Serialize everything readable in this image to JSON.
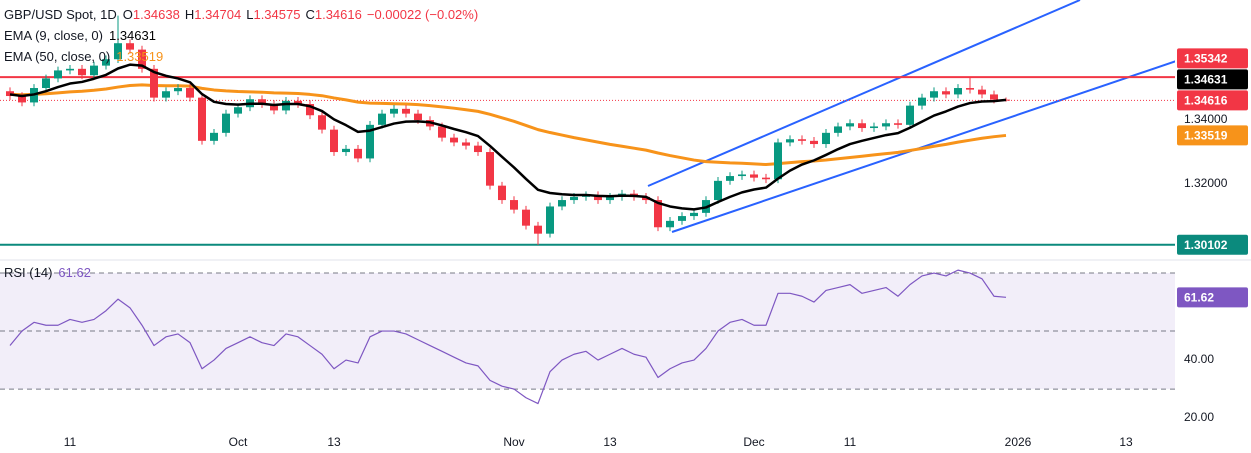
{
  "chart_data": [
    {
      "type": "candlestick",
      "title": "GBP/USD Spot, 1D",
      "ohlc_keys": [
        "O",
        "H",
        "L",
        "C"
      ],
      "change_label": "−0.00022 (−0.02%)",
      "up_color": "#089981",
      "down_color": "#f23645",
      "categories": [
        null,
        null,
        null,
        null,
        null,
        "11",
        null,
        null,
        null,
        null,
        null,
        null,
        null,
        null,
        null,
        null,
        null,
        null,
        null,
        "Oct",
        null,
        null,
        null,
        null,
        null,
        null,
        null,
        "13",
        null,
        null,
        null,
        null,
        null,
        null,
        null,
        null,
        null,
        null,
        null,
        null,
        null,
        null,
        "Nov",
        null,
        null,
        null,
        null,
        null,
        null,
        null,
        "13",
        null,
        null,
        null,
        null,
        null,
        null,
        null,
        null,
        null,
        null,
        null,
        "Dec",
        null,
        null,
        null,
        null,
        null,
        null,
        null,
        "11",
        null,
        null,
        null,
        null,
        null,
        null,
        null,
        null,
        null,
        null,
        null,
        null,
        null,
        "2026",
        null,
        null,
        null,
        null,
        null,
        null,
        null,
        null,
        "13"
      ],
      "open": [
        1.349,
        1.3475,
        1.3455,
        1.35,
        1.353,
        1.3555,
        1.356,
        1.354,
        1.357,
        1.359,
        1.364,
        1.362,
        1.356,
        1.347,
        1.349,
        1.35,
        1.347,
        1.3335,
        1.336,
        1.342,
        1.344,
        1.3465,
        1.345,
        1.343,
        1.346,
        1.345,
        1.3415,
        1.337,
        1.33,
        1.331,
        1.328,
        1.3385,
        1.342,
        1.3435,
        1.342,
        1.34,
        1.338,
        1.3345,
        1.333,
        1.332,
        1.33,
        1.3195,
        1.315,
        1.312,
        1.307,
        1.3045,
        1.313,
        1.315,
        1.316,
        1.3165,
        1.315,
        1.316,
        1.317,
        1.316,
        1.315,
        1.3065,
        1.3085,
        1.31,
        1.311,
        1.315,
        1.321,
        1.3225,
        1.323,
        1.322,
        1.3215,
        1.333,
        1.334,
        1.3335,
        1.3325,
        1.336,
        1.338,
        1.339,
        1.3375,
        1.338,
        1.339,
        1.3385,
        1.3445,
        1.347,
        1.349,
        1.348,
        1.35,
        1.3495,
        1.348,
        1.34638,
        null,
        null,
        null,
        null,
        null,
        null,
        null,
        null,
        null,
        null
      ],
      "high": [
        1.3502,
        1.3487,
        1.3512,
        1.3542,
        1.3567,
        1.3572,
        1.3572,
        1.3582,
        1.3602,
        1.3726,
        1.3652,
        1.3632,
        1.3572,
        1.3502,
        1.3512,
        1.3512,
        1.3482,
        1.3372,
        1.3432,
        1.3452,
        1.3477,
        1.3477,
        1.3462,
        1.3472,
        1.3472,
        1.3462,
        1.3427,
        1.3382,
        1.3322,
        1.3322,
        1.3397,
        1.3432,
        1.3447,
        1.3447,
        1.3432,
        1.3412,
        1.3392,
        1.3357,
        1.3342,
        1.3332,
        1.3312,
        1.3207,
        1.3162,
        1.3132,
        1.3082,
        1.3142,
        1.3162,
        1.3172,
        1.3177,
        1.3177,
        1.3172,
        1.3182,
        1.3182,
        1.3172,
        1.3162,
        1.3097,
        1.3112,
        1.3122,
        1.3162,
        1.3222,
        1.3237,
        1.3242,
        1.3242,
        1.3232,
        1.3342,
        1.3352,
        1.3352,
        1.3347,
        1.3372,
        1.3392,
        1.3402,
        1.3402,
        1.3392,
        1.3402,
        1.3402,
        1.3457,
        1.3482,
        1.3502,
        1.3502,
        1.3512,
        1.3534,
        1.3507,
        1.3492,
        1.34704,
        null,
        null,
        null,
        null,
        null,
        null,
        null,
        null,
        null,
        null
      ],
      "low": [
        1.3463,
        1.3443,
        1.3443,
        1.3488,
        1.3518,
        1.3543,
        1.3528,
        1.3528,
        1.3558,
        1.3578,
        1.3608,
        1.3548,
        1.3458,
        1.3458,
        1.3478,
        1.3458,
        1.3323,
        1.3323,
        1.3348,
        1.3408,
        1.3428,
        1.3438,
        1.3418,
        1.3418,
        1.3438,
        1.3403,
        1.3358,
        1.3288,
        1.3288,
        1.3268,
        1.3268,
        1.3373,
        1.3408,
        1.3408,
        1.3388,
        1.3368,
        1.3333,
        1.3318,
        1.3308,
        1.3288,
        1.3183,
        1.3138,
        1.3108,
        1.3058,
        1.301,
        1.3033,
        1.3118,
        1.3138,
        1.3148,
        1.3138,
        1.3138,
        1.3148,
        1.3148,
        1.3138,
        1.3053,
        1.3053,
        1.3073,
        1.3088,
        1.3098,
        1.3138,
        1.3198,
        1.3213,
        1.3208,
        1.3203,
        1.3203,
        1.3318,
        1.3323,
        1.3313,
        1.3313,
        1.3348,
        1.3368,
        1.3363,
        1.3363,
        1.3368,
        1.3373,
        1.3373,
        1.3433,
        1.3458,
        1.3468,
        1.3468,
        1.3483,
        1.3468,
        1.3452,
        1.34575,
        null,
        null,
        null,
        null,
        null,
        null,
        null,
        null,
        null,
        null
      ],
      "close": [
        1.3475,
        1.3455,
        1.35,
        1.353,
        1.3555,
        1.356,
        1.354,
        1.357,
        1.359,
        1.364,
        1.362,
        1.356,
        1.347,
        1.349,
        1.35,
        1.347,
        1.3335,
        1.336,
        1.342,
        1.344,
        1.3465,
        1.345,
        1.343,
        1.346,
        1.345,
        1.3415,
        1.337,
        1.33,
        1.331,
        1.328,
        1.3385,
        1.342,
        1.3435,
        1.342,
        1.34,
        1.338,
        1.3345,
        1.333,
        1.332,
        1.33,
        1.3195,
        1.315,
        1.312,
        1.307,
        1.3045,
        1.313,
        1.315,
        1.316,
        1.3165,
        1.315,
        1.316,
        1.317,
        1.316,
        1.315,
        1.3065,
        1.3085,
        1.31,
        1.311,
        1.315,
        1.321,
        1.3225,
        1.323,
        1.322,
        1.3215,
        1.333,
        1.334,
        1.3335,
        1.3325,
        1.336,
        1.338,
        1.339,
        1.3375,
        1.338,
        1.339,
        1.3385,
        1.3445,
        1.347,
        1.349,
        1.348,
        1.35,
        1.3495,
        1.348,
        1.34638,
        1.34616,
        null,
        null,
        null,
        null,
        null,
        null,
        null,
        null,
        null,
        null
      ],
      "series": [
        {
          "name": "EMA (9, close, 0)",
          "color": "#000000",
          "values": [
            1.348,
            1.3475,
            1.348,
            1.349,
            1.3503,
            1.3514,
            1.3519,
            1.3529,
            1.3541,
            1.3561,
            1.3573,
            1.357,
            1.355,
            1.3538,
            1.353,
            1.3518,
            1.3481,
            1.3457,
            1.345,
            1.3448,
            1.3451,
            1.3451,
            1.3447,
            1.345,
            1.345,
            1.3443,
            1.3428,
            1.3402,
            1.3384,
            1.3363,
            1.3367,
            1.3378,
            1.3389,
            1.3395,
            1.3396,
            1.3393,
            1.3383,
            1.3372,
            1.3362,
            1.335,
            1.3319,
            1.3285,
            1.3252,
            1.3216,
            1.3182,
            1.3172,
            1.3168,
            1.3166,
            1.3166,
            1.3163,
            1.3162,
            1.3164,
            1.3163,
            1.316,
            1.3141,
            1.313,
            1.3124,
            1.3121,
            1.3127,
            1.3144,
            1.316,
            1.3174,
            1.3183,
            1.3189,
            1.3217,
            1.3242,
            1.3261,
            1.3274,
            1.3291,
            1.3309,
            1.3325,
            1.3335,
            1.3344,
            1.3353,
            1.3359,
            1.3376,
            1.3395,
            1.3414,
            1.3427,
            1.3442,
            1.3453,
            1.3458,
            1.3459,
            1.34631,
            null,
            null,
            null,
            null,
            null,
            null,
            null,
            null,
            null,
            null
          ]
        },
        {
          "name": "EMA (50, close, 0)",
          "color": "#f7931a",
          "values": [
            1.348,
            1.3479,
            1.348,
            1.3482,
            1.3485,
            1.3488,
            1.349,
            1.3493,
            1.3497,
            1.3503,
            1.3508,
            1.351,
            1.3508,
            1.3507,
            1.3507,
            1.3506,
            1.3499,
            1.3494,
            1.3491,
            1.3489,
            1.3488,
            1.3487,
            1.3485,
            1.3484,
            1.3483,
            1.348,
            1.3476,
            1.3469,
            1.3463,
            1.3456,
            1.3453,
            1.3452,
            1.3451,
            1.345,
            1.3448,
            1.3445,
            1.3441,
            1.3437,
            1.3432,
            1.3427,
            1.3418,
            1.3407,
            1.3396,
            1.3383,
            1.337,
            1.3361,
            1.3353,
            1.3345,
            1.3338,
            1.3331,
            1.3324,
            1.3318,
            1.3312,
            1.3306,
            1.3297,
            1.3289,
            1.3282,
            1.3275,
            1.327,
            1.3268,
            1.3266,
            1.3265,
            1.3263,
            1.3261,
            1.3264,
            1.3267,
            1.327,
            1.3272,
            1.3275,
            1.3279,
            1.3283,
            1.3287,
            1.3291,
            1.3295,
            1.3299,
            1.3305,
            1.3311,
            1.3318,
            1.3324,
            1.3331,
            1.3337,
            1.3343,
            1.3348,
            1.33519,
            null,
            null,
            null,
            null,
            null,
            null,
            null,
            null,
            null,
            null
          ]
        }
      ],
      "levels": [
        {
          "value": 1.35342,
          "color": "#f23645"
        },
        {
          "value": 1.30102,
          "color": "#0b8a7d"
        }
      ],
      "ylim": [
        1.2969,
        1.3775
      ],
      "yticks": [
        {
          "value": 1.34,
          "label": "1.34000"
        },
        {
          "value": 1.32,
          "label": "1.32000"
        }
      ],
      "grid": false
    },
    {
      "type": "line",
      "title": "RSI (14)",
      "color": "#7e57c2",
      "values": [
        45,
        50,
        53,
        52,
        52,
        54,
        53,
        54,
        57,
        61,
        58,
        52,
        45,
        48,
        49,
        46,
        37,
        40,
        44,
        46,
        48,
        46,
        45,
        49,
        48,
        45,
        42,
        37,
        40,
        39,
        48,
        50,
        50,
        49,
        47,
        45,
        43,
        41,
        39,
        38,
        33,
        31,
        30,
        27,
        25,
        36,
        40,
        42,
        43,
        40,
        42,
        44,
        42,
        41,
        34,
        37,
        39,
        40,
        44,
        50,
        53,
        54,
        52,
        52,
        63,
        63,
        62,
        60,
        64,
        65,
        66,
        63,
        64,
        65,
        62,
        66,
        69,
        70,
        69,
        71,
        70,
        68,
        62,
        61.62
      ],
      "levels": [
        70,
        50,
        30
      ],
      "ylim": [
        15.2,
        73.8
      ],
      "yticks": [
        {
          "value": 20,
          "label": "20.00"
        },
        {
          "value": 40,
          "label": "40.00"
        }
      ],
      "grid": false
    }
  ]
}
